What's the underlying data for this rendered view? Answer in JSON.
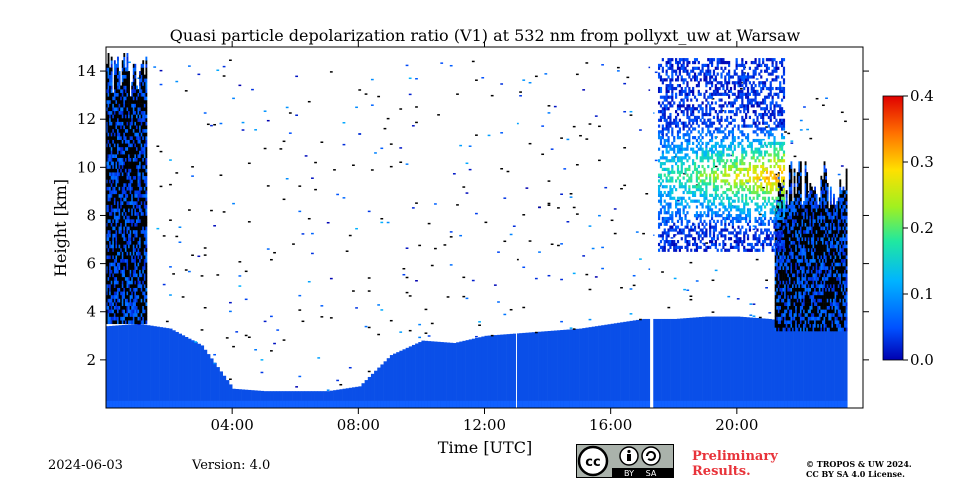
{
  "chart_data": {
    "type": "heatmap",
    "title": "Quasi particle depolarization ratio (V1) at 532 nm from pollyxt_uw at Warsaw",
    "xlabel": "Time [UTC]",
    "ylabel": "Height [km]",
    "xlim_hours": [
      0,
      24
    ],
    "ylim_km": [
      0,
      15
    ],
    "x_ticks": [
      {
        "value": 4,
        "label": "04:00"
      },
      {
        "value": 8,
        "label": "08:00"
      },
      {
        "value": 12,
        "label": "12:00"
      },
      {
        "value": 16,
        "label": "16:00"
      },
      {
        "value": 20,
        "label": "20:00"
      }
    ],
    "y_ticks": [
      2,
      4,
      6,
      8,
      10,
      12,
      14
    ],
    "colorbar": {
      "range": [
        0.0,
        0.4
      ],
      "ticks": [
        "0.0",
        "0.1",
        "0.2",
        "0.3",
        "0.4"
      ],
      "colormap": [
        "#0000b0",
        "#0050ff",
        "#00b4ff",
        "#20e8a0",
        "#a0f020",
        "#ffe000",
        "#ff7000",
        "#e00000"
      ]
    },
    "regions": [
      {
        "name": "boundary-layer",
        "start": 0.0,
        "end": 24.0,
        "values_by_hour": [
          3.4,
          3.5,
          3.3,
          2.6,
          0.8,
          0.7,
          0.7,
          0.7,
          0.9,
          2.2,
          2.8,
          2.7,
          3.0,
          3.1,
          3.2,
          3.3,
          3.5,
          3.7,
          3.7,
          3.8,
          3.8,
          3.7,
          3.5,
          3.3,
          3.4
        ],
        "depol": 0.02
      },
      {
        "name": "low-cloud-tops",
        "segments": [
          [
            0.0,
            1.3,
            3.5,
            14.8
          ],
          [
            21.2,
            23.5,
            3.2,
            10.2
          ]
        ]
      },
      {
        "name": "cirrus",
        "segments": [
          [
            17.5,
            21.5,
            6.5,
            14.5
          ]
        ],
        "depol_peak": 0.32,
        "peak_height_km": 9.6
      }
    ]
  },
  "footer": {
    "date": "2024-06-03",
    "version": "Version: 4.0",
    "preliminary": "Preliminary\nResults.",
    "copyright": "© TROPOS & UW 2024.\nCC BY SA 4.0 License.",
    "cc_labels": {
      "cc": "cc",
      "by": "BY",
      "sa": "SA"
    }
  }
}
